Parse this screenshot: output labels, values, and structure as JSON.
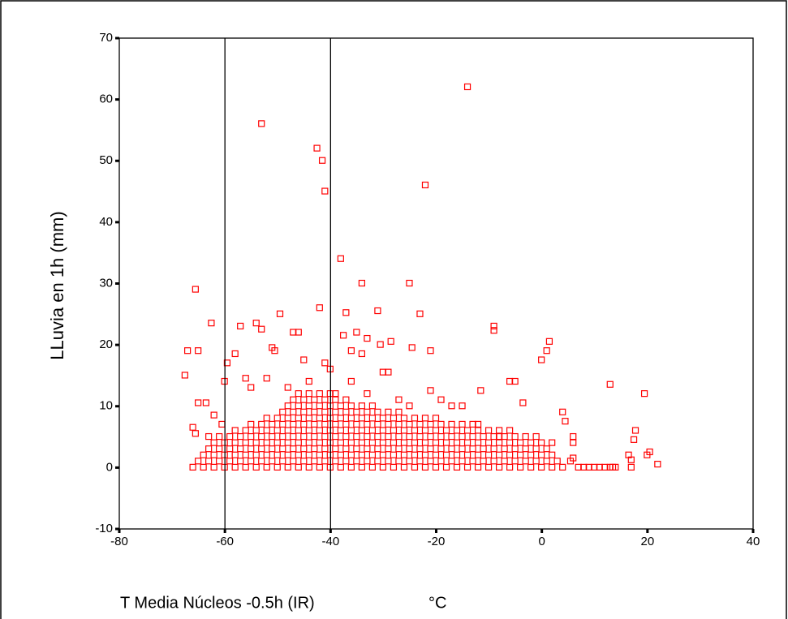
{
  "chart_data": {
    "type": "scatter",
    "y_label": "LLuvia en 1h (mm)",
    "x_label": "T Media Núcleos -0.5h (IR)",
    "x_unit": "°C",
    "color": "#ff0000",
    "xlim": [
      -80,
      40
    ],
    "ylim": [
      -10,
      70
    ],
    "xticks": [
      -80,
      -60,
      -40,
      -20,
      0,
      20,
      40
    ],
    "yticks": [
      -10,
      0,
      10,
      20,
      30,
      40,
      50,
      60,
      70
    ],
    "reference_lines_x": [
      -60,
      -40
    ],
    "points": [
      [
        -14,
        62
      ],
      [
        -53,
        56
      ],
      [
        -42.5,
        52
      ],
      [
        -41.5,
        50
      ],
      [
        -41,
        45
      ],
      [
        -22,
        46
      ],
      [
        -38,
        34
      ],
      [
        -65.5,
        29
      ],
      [
        -34,
        30
      ],
      [
        -25,
        30
      ],
      [
        -42,
        26
      ],
      [
        -49.5,
        25
      ],
      [
        -31,
        25.5
      ],
      [
        -23,
        25
      ],
      [
        -37,
        25.2
      ],
      [
        -62.5,
        23.5
      ],
      [
        -57,
        23
      ],
      [
        -54,
        23.5
      ],
      [
        -53,
        22.5
      ],
      [
        -9,
        23
      ],
      [
        -9,
        22.3
      ],
      [
        -47,
        22
      ],
      [
        -46,
        22
      ],
      [
        -37.5,
        21.5
      ],
      [
        -35,
        22
      ],
      [
        -33,
        21
      ],
      [
        -28.5,
        20.5
      ],
      [
        -30.5,
        20
      ],
      [
        -21,
        19
      ],
      [
        -24.5,
        19.5
      ],
      [
        -65,
        19
      ],
      [
        -67,
        19
      ],
      [
        -59.5,
        17
      ],
      [
        -58,
        18.5
      ],
      [
        -51,
        19.5
      ],
      [
        -50.5,
        19
      ],
      [
        -45,
        17.5
      ],
      [
        -41,
        17
      ],
      [
        -40,
        16
      ],
      [
        -36,
        19
      ],
      [
        -34,
        18.5
      ],
      [
        1.5,
        20.5
      ],
      [
        1,
        19
      ],
      [
        0,
        17.5
      ],
      [
        -67.5,
        15
      ],
      [
        -60,
        14
      ],
      [
        -56,
        14.5
      ],
      [
        -55,
        13
      ],
      [
        -52,
        14.5
      ],
      [
        -36,
        14
      ],
      [
        -30,
        15.5
      ],
      [
        -29,
        15.5
      ],
      [
        -21,
        12.5
      ],
      [
        -11.5,
        12.5
      ],
      [
        -6,
        14
      ],
      [
        -5,
        14
      ],
      [
        13,
        13.5
      ],
      [
        19.5,
        12
      ],
      [
        -19,
        11
      ],
      [
        -17,
        10
      ],
      [
        -15,
        10
      ],
      [
        -3.5,
        10.5
      ],
      [
        4,
        9
      ],
      [
        4.5,
        7.5
      ],
      [
        -65,
        10.5
      ],
      [
        -63.5,
        10.5
      ],
      [
        -60.5,
        7
      ],
      [
        -62,
        8.5
      ],
      [
        -66,
        6.5
      ],
      [
        -65.5,
        5.5
      ],
      [
        -63,
        5
      ],
      [
        6,
        5
      ],
      [
        6,
        4
      ],
      [
        6,
        1.5
      ],
      [
        5.5,
        1
      ],
      [
        7,
        0
      ],
      [
        8,
        0
      ],
      [
        9,
        0
      ],
      [
        10,
        0
      ],
      [
        11,
        0
      ],
      [
        12,
        0
      ],
      [
        13,
        0
      ],
      [
        13.5,
        0
      ],
      [
        14,
        0
      ],
      [
        16.5,
        2
      ],
      [
        17,
        1.2
      ],
      [
        17,
        0
      ],
      [
        17.5,
        4.5
      ],
      [
        17.8,
        6
      ],
      [
        20,
        2
      ],
      [
        20.5,
        2.5
      ],
      [
        22,
        0.5
      ],
      [
        -44,
        14
      ],
      [
        -48,
        13
      ],
      [
        -39,
        12
      ],
      [
        -33,
        12
      ],
      [
        -27,
        11
      ],
      [
        -25,
        10
      ],
      [
        -12,
        7
      ],
      [
        -8,
        5
      ],
      [
        -66,
        0
      ],
      [
        -64,
        0
      ],
      [
        -62,
        0
      ],
      [
        -60,
        0
      ],
      [
        -58,
        0
      ],
      [
        -56,
        0
      ],
      [
        -54,
        0
      ],
      [
        -52,
        0
      ],
      [
        -50,
        0
      ],
      [
        -48,
        0
      ],
      [
        -46,
        0
      ],
      [
        -44,
        0
      ],
      [
        -42,
        0
      ],
      [
        -40,
        0
      ],
      [
        -38,
        0
      ],
      [
        -36,
        0
      ],
      [
        -34,
        0
      ],
      [
        -32,
        0
      ],
      [
        -30,
        0
      ],
      [
        -28,
        0
      ],
      [
        -26,
        0
      ],
      [
        -24,
        0
      ],
      [
        -22,
        0
      ],
      [
        -20,
        0
      ],
      [
        -18,
        0
      ],
      [
        -16,
        0
      ],
      [
        -14,
        0
      ],
      [
        -12,
        0
      ],
      [
        -10,
        0
      ],
      [
        -8,
        0
      ],
      [
        -6,
        0
      ],
      [
        -4,
        0
      ],
      [
        -2,
        0
      ],
      [
        0,
        0
      ],
      [
        2,
        0
      ],
      [
        4,
        0
      ],
      [
        -65,
        1
      ],
      [
        -63,
        1
      ],
      [
        -61,
        1
      ],
      [
        -59,
        1
      ],
      [
        -57,
        1
      ],
      [
        -55,
        1
      ],
      [
        -53,
        1
      ],
      [
        -51,
        1
      ],
      [
        -49,
        1
      ],
      [
        -47,
        1
      ],
      [
        -45,
        1
      ],
      [
        -43,
        1
      ],
      [
        -41,
        1
      ],
      [
        -39,
        1
      ],
      [
        -37,
        1
      ],
      [
        -35,
        1
      ],
      [
        -33,
        1
      ],
      [
        -31,
        1
      ],
      [
        -29,
        1
      ],
      [
        -27,
        1
      ],
      [
        -25,
        1
      ],
      [
        -23,
        1
      ],
      [
        -21,
        1
      ],
      [
        -19,
        1
      ],
      [
        -17,
        1
      ],
      [
        -15,
        1
      ],
      [
        -13,
        1
      ],
      [
        -11,
        1
      ],
      [
        -9,
        1
      ],
      [
        -7,
        1
      ],
      [
        -5,
        1
      ],
      [
        -3,
        1
      ],
      [
        -1,
        1
      ],
      [
        1,
        1
      ],
      [
        3,
        1
      ],
      [
        -64,
        2
      ],
      [
        -62,
        2
      ],
      [
        -60,
        2
      ],
      [
        -58,
        2
      ],
      [
        -56,
        2
      ],
      [
        -54,
        2
      ],
      [
        -52,
        2
      ],
      [
        -50,
        2
      ],
      [
        -48,
        2
      ],
      [
        -46,
        2
      ],
      [
        -44,
        2
      ],
      [
        -42,
        2
      ],
      [
        -40,
        2
      ],
      [
        -38,
        2
      ],
      [
        -36,
        2
      ],
      [
        -34,
        2
      ],
      [
        -32,
        2
      ],
      [
        -30,
        2
      ],
      [
        -28,
        2
      ],
      [
        -26,
        2
      ],
      [
        -24,
        2
      ],
      [
        -22,
        2
      ],
      [
        -20,
        2
      ],
      [
        -18,
        2
      ],
      [
        -16,
        2
      ],
      [
        -14,
        2
      ],
      [
        -12,
        2
      ],
      [
        -10,
        2
      ],
      [
        -8,
        2
      ],
      [
        -6,
        2
      ],
      [
        -4,
        2
      ],
      [
        -2,
        2
      ],
      [
        0,
        2
      ],
      [
        2,
        2
      ],
      [
        -63,
        3
      ],
      [
        -61,
        3
      ],
      [
        -59,
        3
      ],
      [
        -57,
        3
      ],
      [
        -55,
        3
      ],
      [
        -53,
        3
      ],
      [
        -51,
        3
      ],
      [
        -49,
        3
      ],
      [
        -47,
        3
      ],
      [
        -45,
        3
      ],
      [
        -43,
        3
      ],
      [
        -41,
        3
      ],
      [
        -39,
        3
      ],
      [
        -37,
        3
      ],
      [
        -35,
        3
      ],
      [
        -33,
        3
      ],
      [
        -31,
        3
      ],
      [
        -29,
        3
      ],
      [
        -27,
        3
      ],
      [
        -25,
        3
      ],
      [
        -23,
        3
      ],
      [
        -21,
        3
      ],
      [
        -19,
        3
      ],
      [
        -17,
        3
      ],
      [
        -15,
        3
      ],
      [
        -13,
        3
      ],
      [
        -11,
        3
      ],
      [
        -9,
        3
      ],
      [
        -7,
        3
      ],
      [
        -5,
        3
      ],
      [
        -3,
        3
      ],
      [
        -1,
        3
      ],
      [
        1,
        3
      ],
      [
        -62,
        4
      ],
      [
        -60,
        4
      ],
      [
        -58,
        4
      ],
      [
        -56,
        4
      ],
      [
        -54,
        4
      ],
      [
        -52,
        4
      ],
      [
        -50,
        4
      ],
      [
        -48,
        4
      ],
      [
        -46,
        4
      ],
      [
        -44,
        4
      ],
      [
        -42,
        4
      ],
      [
        -40,
        4
      ],
      [
        -38,
        4
      ],
      [
        -36,
        4
      ],
      [
        -34,
        4
      ],
      [
        -32,
        4
      ],
      [
        -30,
        4
      ],
      [
        -28,
        4
      ],
      [
        -26,
        4
      ],
      [
        -24,
        4
      ],
      [
        -22,
        4
      ],
      [
        -20,
        4
      ],
      [
        -18,
        4
      ],
      [
        -16,
        4
      ],
      [
        -14,
        4
      ],
      [
        -12,
        4
      ],
      [
        -10,
        4
      ],
      [
        -8,
        4
      ],
      [
        -6,
        4
      ],
      [
        -4,
        4
      ],
      [
        -2,
        4
      ],
      [
        0,
        4
      ],
      [
        2,
        4
      ],
      [
        -61,
        5
      ],
      [
        -59,
        5
      ],
      [
        -57,
        5
      ],
      [
        -55,
        5
      ],
      [
        -53,
        5
      ],
      [
        -51,
        5
      ],
      [
        -49,
        5
      ],
      [
        -47,
        5
      ],
      [
        -45,
        5
      ],
      [
        -43,
        5
      ],
      [
        -41,
        5
      ],
      [
        -39,
        5
      ],
      [
        -37,
        5
      ],
      [
        -35,
        5
      ],
      [
        -33,
        5
      ],
      [
        -31,
        5
      ],
      [
        -29,
        5
      ],
      [
        -27,
        5
      ],
      [
        -25,
        5
      ],
      [
        -23,
        5
      ],
      [
        -21,
        5
      ],
      [
        -19,
        5
      ],
      [
        -17,
        5
      ],
      [
        -15,
        5
      ],
      [
        -13,
        5
      ],
      [
        -11,
        5
      ],
      [
        -9,
        5
      ],
      [
        -7,
        5
      ],
      [
        -5,
        5
      ],
      [
        -3,
        5
      ],
      [
        -1,
        5
      ],
      [
        -58,
        6
      ],
      [
        -56,
        6
      ],
      [
        -54,
        6
      ],
      [
        -52,
        6
      ],
      [
        -50,
        6
      ],
      [
        -48,
        6
      ],
      [
        -46,
        6
      ],
      [
        -44,
        6
      ],
      [
        -42,
        6
      ],
      [
        -40,
        6
      ],
      [
        -38,
        6
      ],
      [
        -36,
        6
      ],
      [
        -34,
        6
      ],
      [
        -32,
        6
      ],
      [
        -30,
        6
      ],
      [
        -28,
        6
      ],
      [
        -26,
        6
      ],
      [
        -24,
        6
      ],
      [
        -22,
        6
      ],
      [
        -20,
        6
      ],
      [
        -18,
        6
      ],
      [
        -16,
        6
      ],
      [
        -14,
        6
      ],
      [
        -12,
        6
      ],
      [
        -10,
        6
      ],
      [
        -8,
        6
      ],
      [
        -6,
        6
      ],
      [
        -55,
        7
      ],
      [
        -53,
        7
      ],
      [
        -51,
        7
      ],
      [
        -49,
        7
      ],
      [
        -47,
        7
      ],
      [
        -45,
        7
      ],
      [
        -43,
        7
      ],
      [
        -41,
        7
      ],
      [
        -39,
        7
      ],
      [
        -37,
        7
      ],
      [
        -35,
        7
      ],
      [
        -33,
        7
      ],
      [
        -31,
        7
      ],
      [
        -29,
        7
      ],
      [
        -27,
        7
      ],
      [
        -25,
        7
      ],
      [
        -23,
        7
      ],
      [
        -21,
        7
      ],
      [
        -19,
        7
      ],
      [
        -17,
        7
      ],
      [
        -15,
        7
      ],
      [
        -13,
        7
      ],
      [
        -52,
        8
      ],
      [
        -50,
        8
      ],
      [
        -48,
        8
      ],
      [
        -46,
        8
      ],
      [
        -44,
        8
      ],
      [
        -42,
        8
      ],
      [
        -40,
        8
      ],
      [
        -38,
        8
      ],
      [
        -36,
        8
      ],
      [
        -34,
        8
      ],
      [
        -32,
        8
      ],
      [
        -30,
        8
      ],
      [
        -28,
        8
      ],
      [
        -26,
        8
      ],
      [
        -24,
        8
      ],
      [
        -22,
        8
      ],
      [
        -20,
        8
      ],
      [
        -49,
        9
      ],
      [
        -47,
        9
      ],
      [
        -45,
        9
      ],
      [
        -43,
        9
      ],
      [
        -41,
        9
      ],
      [
        -39,
        9
      ],
      [
        -37,
        9
      ],
      [
        -35,
        9
      ],
      [
        -33,
        9
      ],
      [
        -31,
        9
      ],
      [
        -29,
        9
      ],
      [
        -27,
        9
      ],
      [
        -48,
        10
      ],
      [
        -46,
        10
      ],
      [
        -44,
        10
      ],
      [
        -42,
        10
      ],
      [
        -40,
        10
      ],
      [
        -38,
        10
      ],
      [
        -36,
        10
      ],
      [
        -34,
        10
      ],
      [
        -32,
        10
      ],
      [
        -47,
        11
      ],
      [
        -45,
        11
      ],
      [
        -43,
        11
      ],
      [
        -41,
        11
      ],
      [
        -39,
        11
      ],
      [
        -37,
        11
      ],
      [
        -46,
        12
      ],
      [
        -44,
        12
      ],
      [
        -42,
        12
      ],
      [
        -40,
        12
      ]
    ]
  }
}
